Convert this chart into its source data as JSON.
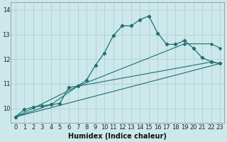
{
  "xlabel": "Humidex (Indice chaleur)",
  "bg_color": "#cce8ea",
  "grid_color": "#b0cfd2",
  "line_color": "#1e7070",
  "xlim": [
    -0.5,
    23.5
  ],
  "ylim": [
    9.4,
    14.3
  ],
  "yticks": [
    10,
    11,
    12,
    13,
    14
  ],
  "xticks": [
    0,
    1,
    2,
    3,
    4,
    5,
    6,
    7,
    8,
    9,
    10,
    11,
    12,
    13,
    14,
    15,
    16,
    17,
    18,
    19,
    20,
    21,
    22,
    23
  ],
  "line1_x": [
    0,
    1,
    2,
    3,
    4,
    5,
    6,
    7,
    8,
    9,
    10,
    11,
    12,
    13,
    14,
    15,
    16,
    17,
    18,
    19,
    20,
    21,
    22,
    23
  ],
  "line1_y": [
    9.65,
    9.95,
    10.05,
    10.1,
    10.15,
    10.2,
    10.85,
    10.9,
    11.15,
    11.75,
    12.25,
    12.95,
    13.35,
    13.35,
    13.6,
    13.75,
    13.05,
    12.6,
    12.6,
    12.75,
    12.45,
    12.05,
    11.9,
    11.82
  ],
  "line2_x": [
    0,
    4,
    7,
    22,
    23
  ],
  "line2_y": [
    9.65,
    10.15,
    10.9,
    11.88,
    11.82
  ],
  "line3_x": [
    0,
    7,
    19,
    22,
    23
  ],
  "line3_y": [
    9.65,
    10.9,
    12.62,
    12.62,
    12.45
  ],
  "line4_x": [
    0,
    23
  ],
  "line4_y": [
    9.65,
    11.82
  ],
  "xlabel_fontsize": 7,
  "tick_fontsize": 6
}
